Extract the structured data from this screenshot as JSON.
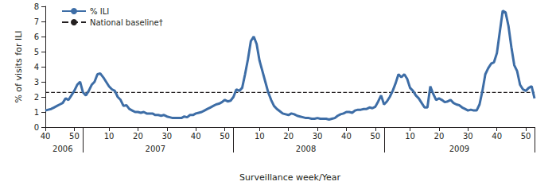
{
  "chart_data": {
    "type": "line",
    "x_label": "Surveillance week/Year",
    "y_label": "% of visits for ILI",
    "categories": [
      "40",
      null,
      null,
      null,
      null,
      null,
      null,
      null,
      null,
      null,
      "50",
      null,
      null,
      null,
      null,
      null,
      null,
      null,
      null,
      null,
      null,
      null,
      "10",
      null,
      null,
      null,
      null,
      null,
      null,
      null,
      null,
      null,
      "20",
      null,
      null,
      null,
      null,
      null,
      null,
      null,
      null,
      null,
      "30",
      null,
      null,
      null,
      null,
      null,
      null,
      null,
      null,
      null,
      "40",
      null,
      null,
      null,
      null,
      null,
      null,
      null,
      null,
      null,
      "50",
      null,
      null,
      null,
      null,
      null,
      null,
      null,
      null,
      null,
      null,
      null,
      "10",
      null,
      null,
      null,
      null,
      null,
      null,
      null,
      null,
      null,
      "20",
      null,
      null,
      null,
      null,
      null,
      null,
      null,
      null,
      null,
      "30",
      null,
      null,
      null,
      null,
      null,
      null,
      null,
      null,
      null,
      "40",
      null,
      null,
      null,
      null,
      null,
      null,
      null,
      null,
      null,
      "50",
      null,
      null,
      null,
      null,
      null,
      null,
      null,
      null,
      null,
      null,
      null,
      "10",
      null,
      null,
      null,
      null,
      null,
      null,
      null,
      null,
      null,
      "20",
      null,
      null,
      null,
      null,
      null,
      null,
      null,
      null,
      null,
      "30",
      null,
      null,
      null,
      null,
      null,
      null,
      null,
      null,
      null,
      "40",
      null,
      null,
      null,
      null,
      null,
      null,
      null,
      null,
      null,
      "50",
      null,
      null,
      null
    ],
    "x_groups": [
      {
        "label": "2006",
        "count": 13
      },
      {
        "label": "2007",
        "count": 52
      },
      {
        "label": "2008",
        "count": 52
      },
      {
        "label": "2009",
        "count": 53
      }
    ],
    "series": [
      {
        "name": "% ILI",
        "color": "#3d6da6",
        "line_style": "solid",
        "values": [
          1.1,
          1.15,
          1.2,
          1.3,
          1.4,
          1.5,
          1.6,
          1.9,
          1.8,
          2.1,
          2.4,
          2.8,
          3.0,
          2.3,
          2.1,
          2.4,
          2.8,
          3.0,
          3.5,
          3.55,
          3.3,
          3.0,
          2.7,
          2.5,
          2.4,
          2.0,
          1.8,
          1.4,
          1.45,
          1.2,
          1.1,
          1.0,
          1.0,
          0.95,
          1.0,
          0.9,
          0.9,
          0.9,
          0.8,
          0.8,
          0.75,
          0.8,
          0.7,
          0.65,
          0.6,
          0.6,
          0.6,
          0.6,
          0.7,
          0.65,
          0.8,
          0.8,
          0.9,
          0.95,
          1.0,
          1.1,
          1.2,
          1.3,
          1.4,
          1.5,
          1.55,
          1.65,
          1.8,
          1.7,
          1.75,
          2.0,
          2.5,
          2.4,
          2.6,
          3.5,
          4.5,
          5.7,
          6.0,
          5.5,
          4.4,
          3.7,
          3.0,
          2.3,
          1.8,
          1.4,
          1.2,
          1.05,
          0.9,
          0.85,
          0.8,
          0.9,
          0.85,
          0.75,
          0.7,
          0.65,
          0.6,
          0.6,
          0.55,
          0.55,
          0.6,
          0.55,
          0.55,
          0.55,
          0.5,
          0.55,
          0.6,
          0.75,
          0.85,
          0.9,
          1.0,
          1.0,
          0.95,
          1.1,
          1.15,
          1.15,
          1.2,
          1.2,
          1.3,
          1.25,
          1.35,
          1.7,
          2.1,
          1.5,
          1.7,
          2.0,
          2.4,
          2.9,
          3.5,
          3.3,
          3.5,
          3.2,
          2.6,
          2.4,
          2.1,
          1.9,
          1.6,
          1.3,
          1.3,
          2.7,
          2.2,
          1.8,
          1.9,
          1.8,
          1.65,
          1.7,
          1.8,
          1.6,
          1.5,
          1.45,
          1.3,
          1.2,
          1.1,
          1.15,
          1.1,
          1.1,
          1.5,
          2.4,
          3.5,
          3.9,
          4.2,
          4.3,
          4.9,
          6.3,
          7.7,
          7.6,
          6.7,
          5.3,
          4.1,
          3.7,
          2.8,
          2.5,
          2.4,
          2.6,
          2.7,
          1.9
        ]
      }
    ],
    "baseline": {
      "name": "National baseline†",
      "value": 2.3,
      "color": "#231f20",
      "line_style": "dashed"
    },
    "ylim": [
      0,
      8
    ],
    "yticks": [
      0,
      1,
      2,
      3,
      4,
      5,
      6,
      7,
      8
    ],
    "grid": false,
    "legend": "upper left"
  }
}
